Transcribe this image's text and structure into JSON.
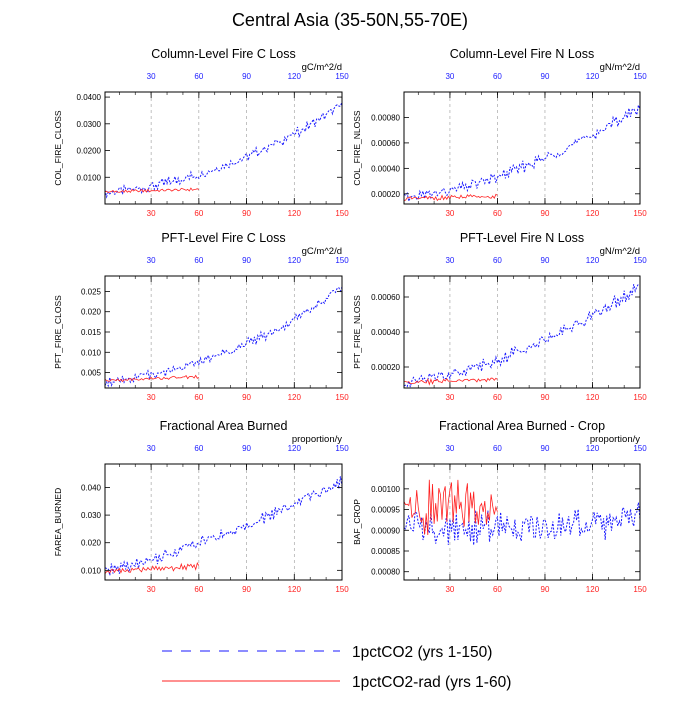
{
  "title": "Central Asia (35-50N,55-70E)",
  "legend": {
    "entries": [
      {
        "label": "1pctCO2 (yrs 1-150)",
        "color": "#1a1aff",
        "style": "dashed"
      },
      {
        "label": "1pctCO2-rad (yrs 1-60)",
        "color": "#ff2020",
        "style": "solid"
      }
    ]
  },
  "colors": {
    "series_1": "#1a1aff",
    "series_2": "#ff2020",
    "top_ticks": "#1a1aff",
    "bottom_ticks": "#ff2020",
    "gridline": "#999999"
  },
  "chart_data": [
    {
      "type": "line",
      "title": "Column-Level Fire C Loss",
      "units": "gC/m^2/d",
      "ylabel": "COL_FIRE_CLOSS",
      "xlim": [
        1,
        150
      ],
      "ylim": [
        0.0,
        0.0419
      ],
      "yticks": [
        0.01,
        0.02,
        0.03,
        0.04
      ],
      "ytick_labels": [
        "0.0100",
        "0.0200",
        "0.0300",
        "0.0400"
      ],
      "xticks_bottom": [
        30,
        60,
        90,
        120,
        150
      ],
      "xticks_top": [
        30,
        60,
        90,
        120,
        150
      ],
      "vlines": [
        30,
        60,
        90,
        120
      ],
      "series": [
        {
          "name": "1pctCO2 (yrs 1-150)",
          "x_start": 1,
          "x_end": 150,
          "trend": [
            [
              1,
              0.004
            ],
            [
              30,
              0.0065
            ],
            [
              60,
              0.011
            ],
            [
              90,
              0.0175
            ],
            [
              120,
              0.026
            ],
            [
              150,
              0.037
            ]
          ],
          "amplitude": 0.0022
        },
        {
          "name": "1pctCO2-rad (yrs 1-60)",
          "x_start": 1,
          "x_end": 60,
          "trend": [
            [
              1,
              0.0045
            ],
            [
              30,
              0.005
            ],
            [
              60,
              0.0055
            ]
          ],
          "amplitude": 0.0007
        }
      ]
    },
    {
      "type": "line",
      "title": "Column-Level Fire N Loss",
      "units": "gN/m^2/d",
      "ylabel": "COL_FIRE_NLOSS",
      "xlim": [
        1,
        150
      ],
      "ylim": [
        0.00012,
        0.001
      ],
      "yticks": [
        0.0002,
        0.0004,
        0.0006,
        0.0008
      ],
      "ytick_labels": [
        "0.00020",
        "0.00040",
        "0.00060",
        "0.00080"
      ],
      "xticks_bottom": [
        30,
        60,
        90,
        120,
        150
      ],
      "xticks_top": [
        30,
        60,
        90,
        120,
        150
      ],
      "vlines": [
        30,
        60,
        90,
        120
      ],
      "series": [
        {
          "name": "1pctCO2 (yrs 1-150)",
          "x_start": 1,
          "x_end": 150,
          "trend": [
            [
              1,
              0.000165
            ],
            [
              30,
              0.00022
            ],
            [
              60,
              0.00033
            ],
            [
              90,
              0.00048
            ],
            [
              120,
              0.00066
            ],
            [
              150,
              0.00088
            ]
          ],
          "amplitude": 5e-05
        },
        {
          "name": "1pctCO2-rad (yrs 1-60)",
          "x_start": 1,
          "x_end": 60,
          "trend": [
            [
              1,
              0.00016
            ],
            [
              30,
              0.00017
            ],
            [
              60,
              0.00018
            ]
          ],
          "amplitude": 2e-05
        }
      ]
    },
    {
      "type": "line",
      "title": "PFT-Level Fire C Loss",
      "units": "gC/m^2/d",
      "ylabel": "PFT_FIRE_CLOSS",
      "xlim": [
        1,
        150
      ],
      "ylim": [
        0.0012,
        0.0288
      ],
      "yticks": [
        0.005,
        0.01,
        0.015,
        0.02,
        0.025
      ],
      "ytick_labels": [
        "0.005",
        "0.010",
        "0.015",
        "0.020",
        "0.025"
      ],
      "xticks_bottom": [
        30,
        60,
        90,
        120,
        150
      ],
      "xticks_top": [
        30,
        60,
        90,
        120,
        150
      ],
      "vlines": [
        30,
        60,
        90,
        120
      ],
      "series": [
        {
          "name": "1pctCO2 (yrs 1-150)",
          "x_start": 1,
          "x_end": 150,
          "trend": [
            [
              1,
              0.0028
            ],
            [
              30,
              0.0045
            ],
            [
              60,
              0.0075
            ],
            [
              90,
              0.012
            ],
            [
              120,
              0.018
            ],
            [
              150,
              0.026
            ]
          ],
          "amplitude": 0.0014
        },
        {
          "name": "1pctCO2-rad (yrs 1-60)",
          "x_start": 1,
          "x_end": 60,
          "trend": [
            [
              1,
              0.003
            ],
            [
              30,
              0.0035
            ],
            [
              60,
              0.004
            ]
          ],
          "amplitude": 0.0005
        }
      ]
    },
    {
      "type": "line",
      "title": "PFT-Level Fire N Loss",
      "units": "gN/m^2/d",
      "ylabel": "PFT_FIRE_NLOSS",
      "xlim": [
        1,
        150
      ],
      "ylim": [
        8e-05,
        0.00072
      ],
      "yticks": [
        0.0002,
        0.0004,
        0.0006
      ],
      "ytick_labels": [
        "0.00020",
        "0.00040",
        "0.00060"
      ],
      "xticks_bottom": [
        30,
        60,
        90,
        120,
        150
      ],
      "xticks_top": [
        30,
        60,
        90,
        120,
        150
      ],
      "vlines": [
        30,
        60,
        90,
        120
      ],
      "series": [
        {
          "name": "1pctCO2 (yrs 1-150)",
          "x_start": 1,
          "x_end": 150,
          "trend": [
            [
              1,
              0.00011
            ],
            [
              30,
              0.00016
            ],
            [
              60,
              0.00024
            ],
            [
              90,
              0.00036
            ],
            [
              120,
              0.00049
            ],
            [
              150,
              0.00066
            ]
          ],
          "amplitude": 4e-05
        },
        {
          "name": "1pctCO2-rad (yrs 1-60)",
          "x_start": 1,
          "x_end": 60,
          "trend": [
            [
              1,
              0.00011
            ],
            [
              30,
              0.00012
            ],
            [
              60,
              0.00013
            ]
          ],
          "amplitude": 1.5e-05
        }
      ]
    },
    {
      "type": "line",
      "title": "Fractional Area Burned",
      "units": "proportion/y",
      "ylabel": "FAREA_BURNED",
      "xlim": [
        1,
        150
      ],
      "ylim": [
        0.0065,
        0.0485
      ],
      "yticks": [
        0.01,
        0.02,
        0.03,
        0.04
      ],
      "ytick_labels": [
        "0.010",
        "0.020",
        "0.030",
        "0.040"
      ],
      "xticks_bottom": [
        30,
        60,
        90,
        120,
        150
      ],
      "xticks_top": [
        30,
        60,
        90,
        120,
        150
      ],
      "vlines": [
        30,
        60,
        90,
        120
      ],
      "series": [
        {
          "name": "1pctCO2 (yrs 1-150)",
          "x_start": 1,
          "x_end": 150,
          "trend": [
            [
              1,
              0.0095
            ],
            [
              30,
              0.0135
            ],
            [
              60,
              0.02
            ],
            [
              90,
              0.026
            ],
            [
              120,
              0.034
            ],
            [
              150,
              0.042
            ]
          ],
          "amplitude": 0.0025
        },
        {
          "name": "1pctCO2-rad (yrs 1-60)",
          "x_start": 1,
          "x_end": 60,
          "trend": [
            [
              1,
              0.0095
            ],
            [
              30,
              0.0105
            ],
            [
              60,
              0.0115
            ]
          ],
          "amplitude": 0.0012
        }
      ]
    },
    {
      "type": "line",
      "title": "Fractional Area Burned - Crop",
      "units": "proportion/y",
      "ylabel": "BAF_CROP",
      "xlim": [
        1,
        150
      ],
      "ylim": [
        0.00078,
        0.00106
      ],
      "yticks": [
        0.0008,
        0.00085,
        0.0009,
        0.00095,
        0.001
      ],
      "ytick_labels": [
        "0.00080",
        "0.00085",
        "0.00090",
        "0.00095",
        "0.00100"
      ],
      "xticks_bottom": [
        30,
        60,
        90,
        120,
        150
      ],
      "xticks_top": [
        30,
        60,
        90,
        120,
        150
      ],
      "vlines": [
        30,
        60,
        90,
        120
      ],
      "series": [
        {
          "name": "1pctCO2 (yrs 1-150)",
          "x_start": 1,
          "x_end": 150,
          "trend": [
            [
              1,
              0.00092
            ],
            [
              30,
              0.0009
            ],
            [
              60,
              0.00091
            ],
            [
              90,
              0.0009
            ],
            [
              120,
              0.00091
            ],
            [
              150,
              0.00094
            ]
          ],
          "amplitude": 4.5e-05
        },
        {
          "name": "1pctCO2-rad (yrs 1-60)",
          "x_start": 1,
          "x_end": 60,
          "trend": [
            [
              1,
              0.00094
            ],
            [
              30,
              0.00096
            ],
            [
              60,
              0.00095
            ]
          ],
          "amplitude": 8e-05
        }
      ]
    }
  ]
}
